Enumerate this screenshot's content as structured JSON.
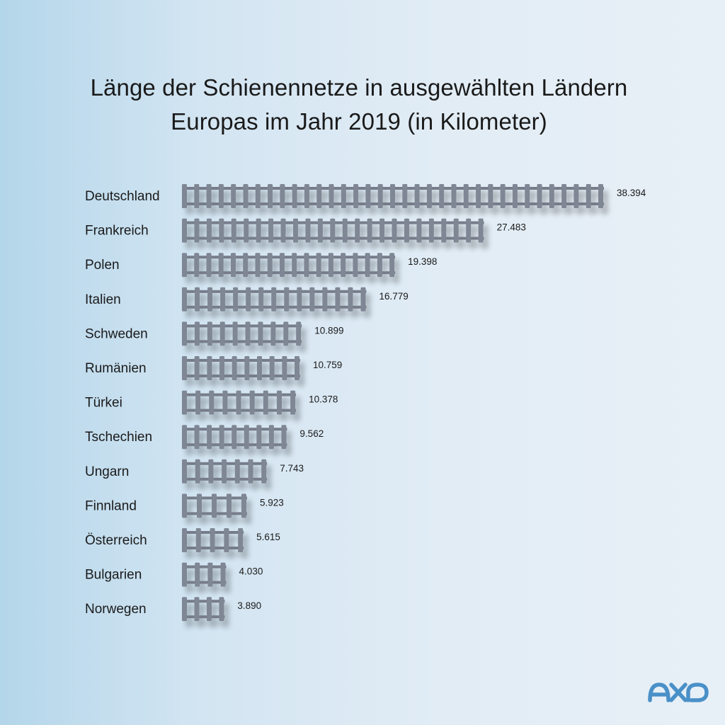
{
  "title_lines": [
    "Länge der Schienennetze in ausgewählten Ländern",
    "Europas im Jahr 2019 (in Kilometer)"
  ],
  "chart_data": {
    "type": "bar",
    "orientation": "horizontal",
    "title": "Länge der Schienennetze in ausgewählten Ländern Europas im Jahr 2019 (in Kilometer)",
    "categories": [
      "Deutschland",
      "Frankreich",
      "Polen",
      "Italien",
      "Schweden",
      "Rumänien",
      "Türkei",
      "Tschechien",
      "Ungarn",
      "Finnland",
      "Österreich",
      "Bulgarien",
      "Norwegen"
    ],
    "values": [
      38394,
      27483,
      19398,
      16779,
      10899,
      10759,
      10378,
      9562,
      7743,
      5923,
      5615,
      4030,
      3890
    ],
    "value_labels": [
      "38.394",
      "27.483",
      "19.398",
      "16.779",
      "10.899",
      "10.759",
      "10.378",
      "9.562",
      "7.743",
      "5.923",
      "5.615",
      "4.030",
      "3.890"
    ],
    "xlim": [
      0,
      38394
    ],
    "grid": false,
    "legend": false,
    "colors": {
      "rail": "#767c8a",
      "tie": "#7f8694",
      "text": "#1a1a1a"
    }
  },
  "logo": {
    "icon": "axo-logo-icon",
    "color": "#4a90c8"
  }
}
